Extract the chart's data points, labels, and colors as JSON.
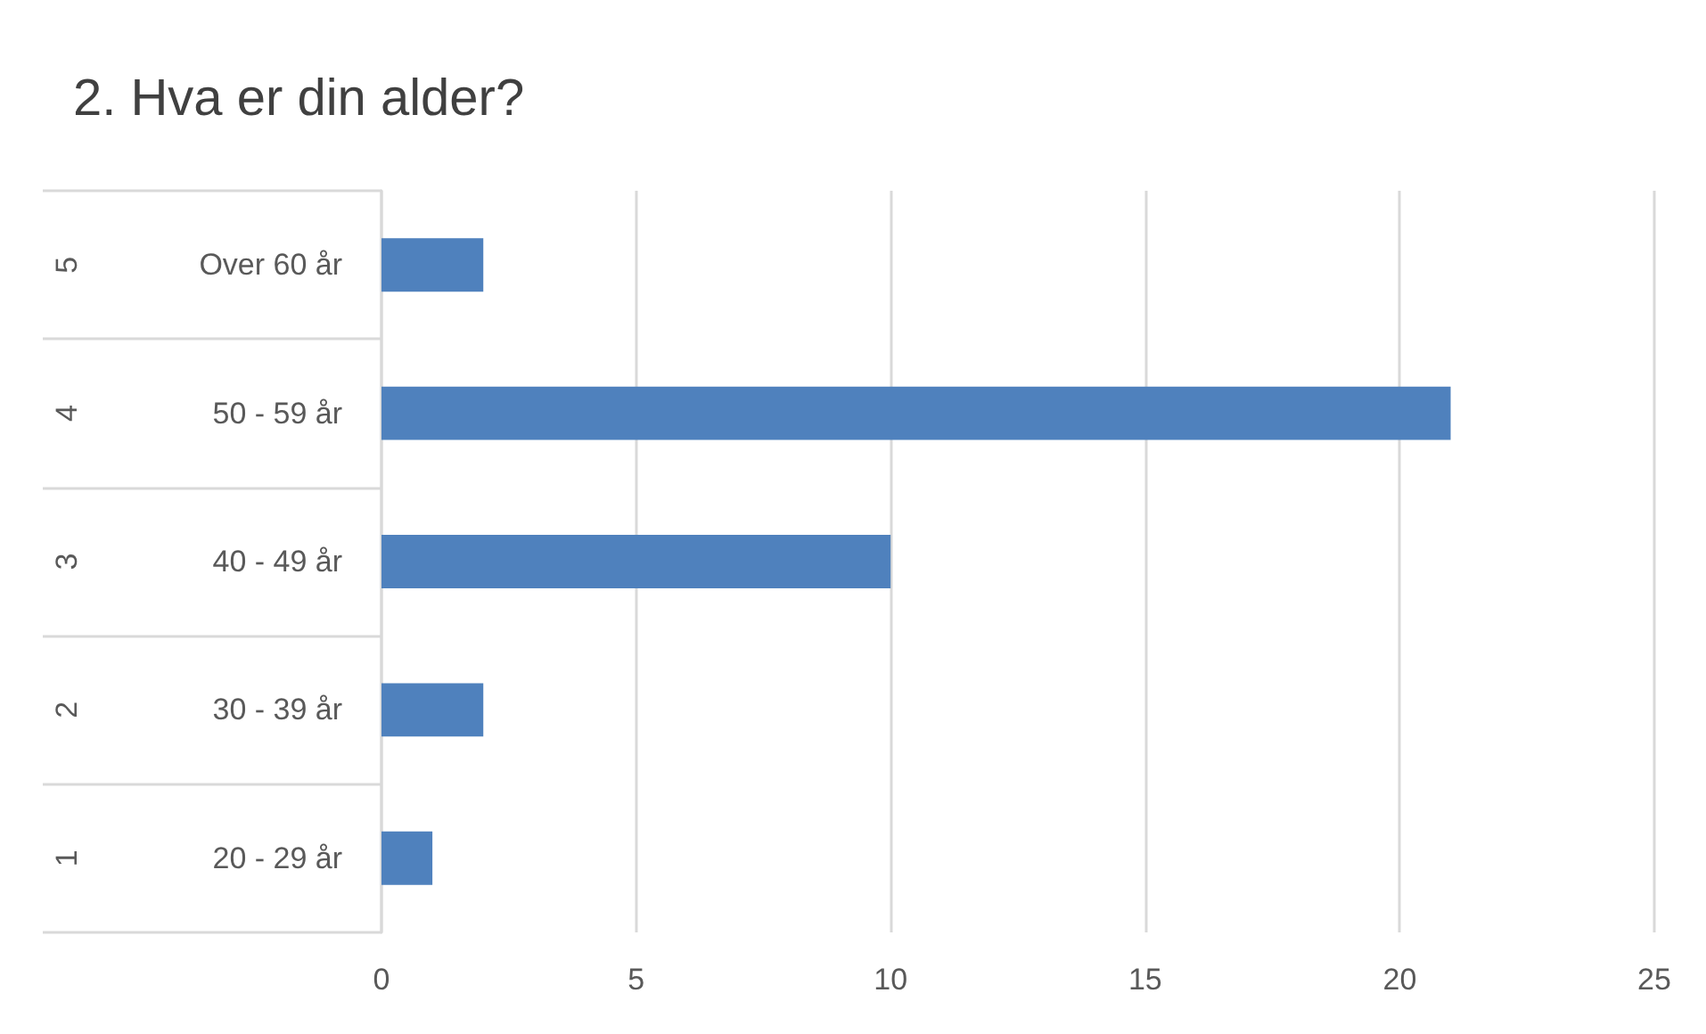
{
  "chart_data": {
    "type": "bar",
    "orientation": "horizontal",
    "title": "2. Hva er din alder?",
    "categories": [
      "Over 60 år",
      "50 - 59 år",
      "40 - 49 år",
      "30 - 39 år",
      "20 - 29 år"
    ],
    "values": [
      2,
      21,
      10,
      2,
      1
    ],
    "color": "#4f81bd",
    "annotations": [
      "5",
      "4",
      "3",
      "2",
      "1"
    ],
    "xlim": [
      0,
      25
    ],
    "xticks": [
      0,
      5,
      10,
      15,
      20,
      25
    ],
    "grid": "x"
  }
}
